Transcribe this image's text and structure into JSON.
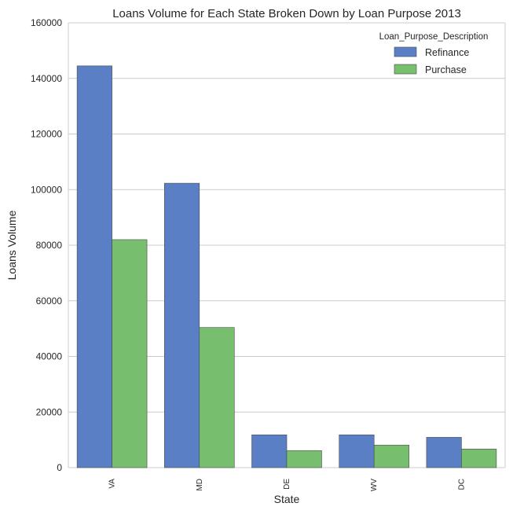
{
  "chart_data": {
    "type": "bar",
    "title": "Loans Volume for Each State Broken Down by Loan Purpose 2013",
    "xlabel": "State",
    "ylabel": "Loans Volume",
    "categories": [
      "VA",
      "MD",
      "DE",
      "WV",
      "DC"
    ],
    "series": [
      {
        "name": "Refinance",
        "values": [
          144500,
          102300,
          11800,
          11800,
          10900
        ],
        "color": "#5b7fc4"
      },
      {
        "name": "Purchase",
        "values": [
          82000,
          50400,
          6100,
          8100,
          6700
        ],
        "color": "#77be6f"
      }
    ],
    "ylim": [
      0,
      160000
    ],
    "yticks": [
      0,
      20000,
      40000,
      60000,
      80000,
      100000,
      120000,
      140000,
      160000
    ],
    "grid": true,
    "legend": {
      "title": "Loan_Purpose_Description",
      "position": "top-right"
    }
  }
}
